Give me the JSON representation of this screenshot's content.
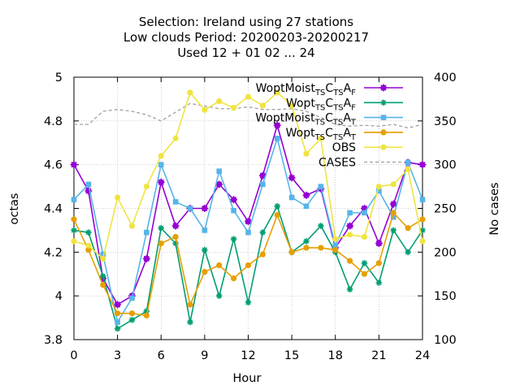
{
  "chart_data": {
    "type": "line",
    "title": [
      "Selection: Ireland using    27 stations",
      "Low clouds   Period: 20200203-20200217",
      "Used  12 + 01 02 ... 24"
    ],
    "xlabel": "Hour",
    "ylabel": "octas",
    "y2label": "No cases",
    "xlim": [
      0,
      24
    ],
    "ylim": [
      3.8,
      5.0
    ],
    "y2lim": [
      100,
      400
    ],
    "xticks": [
      0,
      3,
      6,
      9,
      12,
      15,
      18,
      21,
      24
    ],
    "yticks": [
      "3.8",
      "4",
      "4.2",
      "4.4",
      "4.6",
      "4.8",
      "5"
    ],
    "y2ticks": [
      "100",
      "150",
      "200",
      "250",
      "300",
      "350",
      "400"
    ],
    "grid": true,
    "legend_position": "top-right",
    "x": [
      0,
      1,
      2,
      3,
      4,
      5,
      6,
      7,
      8,
      9,
      10,
      11,
      12,
      13,
      14,
      15,
      16,
      17,
      18,
      19,
      20,
      21,
      22,
      23,
      24
    ],
    "series": [
      {
        "name": "WoptMoist",
        "subs": [
          "TS",
          "TS",
          "F"
        ],
        "color": "#9400d3",
        "marker": "plus-square",
        "values": [
          4.6,
          4.48,
          4.08,
          3.96,
          4.0,
          4.17,
          4.52,
          4.32,
          4.4,
          4.4,
          4.51,
          4.44,
          4.34,
          4.55,
          4.78,
          4.54,
          4.46,
          4.49,
          4.22,
          4.32,
          4.4,
          4.24,
          4.42,
          4.61,
          4.6
        ]
      },
      {
        "name": "Wopt",
        "subs": [
          "TS",
          "TS",
          "F"
        ],
        "color": "#009e73",
        "marker": "star",
        "values": [
          4.3,
          4.29,
          4.09,
          3.85,
          3.89,
          3.93,
          4.31,
          4.24,
          3.88,
          4.21,
          4.0,
          4.26,
          3.97,
          4.29,
          4.41,
          4.2,
          4.25,
          4.32,
          4.2,
          4.03,
          4.15,
          4.06,
          4.3,
          4.2,
          4.3
        ]
      },
      {
        "name": "WoptMoist",
        "subs": [
          "TS",
          "TS",
          "T"
        ],
        "color": "#56b4e9",
        "marker": "square",
        "values": [
          4.44,
          4.51,
          4.19,
          3.88,
          3.99,
          4.29,
          4.6,
          4.43,
          4.4,
          4.3,
          4.57,
          4.39,
          4.29,
          4.51,
          4.72,
          4.45,
          4.41,
          4.5,
          4.23,
          4.38,
          4.38,
          4.48,
          4.36,
          4.61,
          4.44
        ]
      },
      {
        "name": "Wopt",
        "subs": [
          "TS",
          "TS",
          "T"
        ],
        "color": "#e69f00",
        "marker": "circle",
        "values": [
          4.35,
          4.21,
          4.05,
          3.92,
          3.92,
          3.91,
          4.24,
          4.27,
          3.96,
          4.11,
          4.14,
          4.08,
          4.14,
          4.19,
          4.37,
          4.2,
          4.22,
          4.22,
          4.21,
          4.16,
          4.1,
          4.15,
          4.38,
          4.31,
          4.35
        ]
      },
      {
        "name": "OBS",
        "subs": [],
        "color": "#f0e442",
        "marker": "circle",
        "values": [
          4.25,
          4.23,
          4.17,
          4.45,
          4.32,
          4.5,
          4.64,
          4.72,
          4.93,
          4.85,
          4.89,
          4.86,
          4.91,
          4.87,
          4.93,
          4.87,
          4.65,
          4.72,
          4.26,
          4.28,
          4.27,
          4.5,
          4.51,
          4.58,
          4.25
        ]
      }
    ],
    "cases": {
      "name": "CASES",
      "color": "#a0a0a0",
      "axis": "y2",
      "values": [
        346,
        346,
        361,
        363,
        361,
        357,
        350,
        360,
        370,
        367,
        364,
        364,
        366,
        363,
        363,
        364,
        361,
        354,
        346,
        344,
        345,
        344,
        346,
        342,
        346
      ]
    }
  }
}
